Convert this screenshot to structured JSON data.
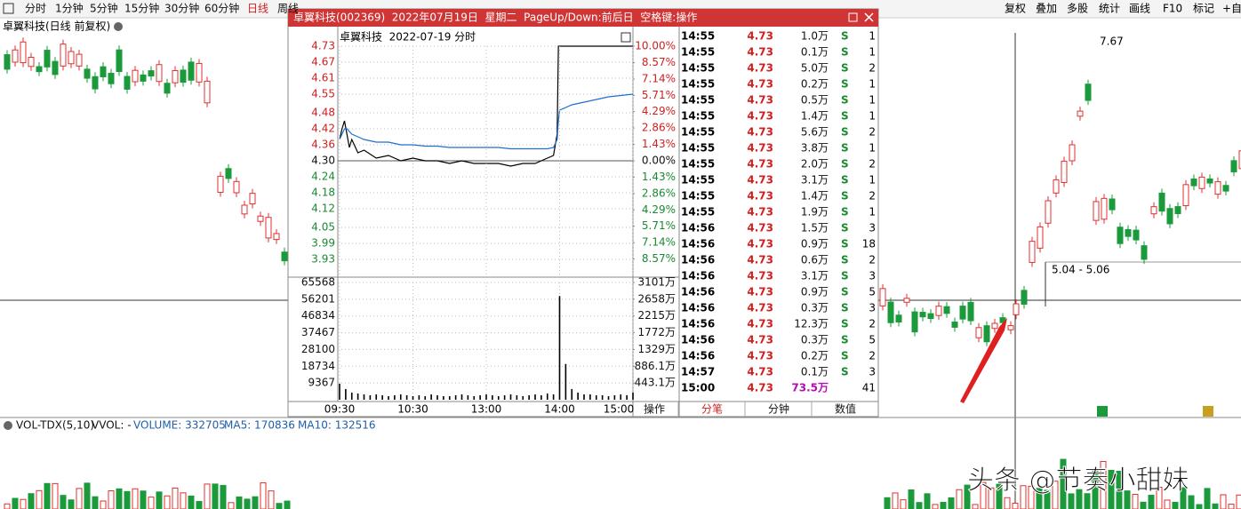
{
  "ui": {
    "toolbar_left": [
      "分时",
      "1分钟",
      "5分钟",
      "15分钟",
      "30分钟",
      "60分钟",
      "日线",
      "周线"
    ],
    "toolbar_right": [
      "复权",
      "叠加",
      "多股",
      "统计",
      "画线",
      "F10",
      "标记",
      "+自"
    ],
    "main_title": "卓翼科技(日线 前复权)",
    "annotations": [
      "7.67",
      "5.04 - 5.06"
    ],
    "volume_header": [
      "VOL-TDX(5,10)",
      "VVOL: -",
      "VOLUME: 332705",
      "MA5: 170836",
      "MA10: 132516"
    ],
    "watermark": "头条 @节奏小甜妹"
  },
  "popup": {
    "title": "卓翼科技(002369)  2022年07月19日  星期二  PageUp/Down:前后日  空格键:操作",
    "tabs": [
      "操作",
      "分笔",
      "分钟",
      "数值"
    ],
    "trades": [
      {
        "time": "14:55",
        "price": "4.73",
        "volume": "1.0万",
        "side": "S",
        "count": "1"
      },
      {
        "time": "14:55",
        "price": "4.73",
        "volume": "0.1万",
        "side": "S",
        "count": "1"
      },
      {
        "time": "14:55",
        "price": "4.73",
        "volume": "5.0万",
        "side": "S",
        "count": "2"
      },
      {
        "time": "14:55",
        "price": "4.73",
        "volume": "0.2万",
        "side": "S",
        "count": "1"
      },
      {
        "time": "14:55",
        "price": "4.73",
        "volume": "0.5万",
        "side": "S",
        "count": "1"
      },
      {
        "time": "14:55",
        "price": "4.73",
        "volume": "1.4万",
        "side": "S",
        "count": "1"
      },
      {
        "time": "14:55",
        "price": "4.73",
        "volume": "5.6万",
        "side": "S",
        "count": "2"
      },
      {
        "time": "14:55",
        "price": "4.73",
        "volume": "3.8万",
        "side": "S",
        "count": "1"
      },
      {
        "time": "14:55",
        "price": "4.73",
        "volume": "2.0万",
        "side": "S",
        "count": "2"
      },
      {
        "time": "14:55",
        "price": "4.73",
        "volume": "3.1万",
        "side": "S",
        "count": "1"
      },
      {
        "time": "14:55",
        "price": "4.73",
        "volume": "1.4万",
        "side": "S",
        "count": "2"
      },
      {
        "time": "14:55",
        "price": "4.73",
        "volume": "1.9万",
        "side": "S",
        "count": "1"
      },
      {
        "time": "14:56",
        "price": "4.73",
        "volume": "1.5万",
        "side": "S",
        "count": "3"
      },
      {
        "time": "14:56",
        "price": "4.73",
        "volume": "0.9万",
        "side": "S",
        "count": "18"
      },
      {
        "time": "14:56",
        "price": "4.73",
        "volume": "0.6万",
        "side": "S",
        "count": "2"
      },
      {
        "time": "14:56",
        "price": "4.73",
        "volume": "3.1万",
        "side": "S",
        "count": "3"
      },
      {
        "time": "14:56",
        "price": "4.73",
        "volume": "0.9万",
        "side": "S",
        "count": "5"
      },
      {
        "time": "14:56",
        "price": "4.73",
        "volume": "0.3万",
        "side": "S",
        "count": "3"
      },
      {
        "time": "14:56",
        "price": "4.73",
        "volume": "12.3万",
        "side": "S",
        "count": "2"
      },
      {
        "time": "14:56",
        "price": "4.73",
        "volume": "0.3万",
        "side": "S",
        "count": "5"
      },
      {
        "time": "14:56",
        "price": "4.73",
        "volume": "0.2万",
        "side": "S",
        "count": "2"
      },
      {
        "time": "14:57",
        "price": "4.73",
        "volume": "0.1万",
        "side": "S",
        "count": "3"
      },
      {
        "time": "15:00",
        "price": "4.73",
        "volume": "73.5万",
        "count": "41"
      }
    ]
  },
  "chart_data": [
    {
      "type": "line",
      "title": "卓翼科技  2022-07-19 分时",
      "x": [
        0,
        2,
        4,
        6,
        8,
        10,
        15,
        20,
        30,
        40,
        50,
        60,
        70,
        80,
        90,
        100,
        110,
        120,
        130,
        140,
        150,
        160,
        170,
        175,
        178,
        179,
        180,
        190,
        200,
        210,
        220,
        230,
        240
      ],
      "series": [
        {
          "color": "#000000",
          "values": [
            4.38,
            4.42,
            4.45,
            4.4,
            4.35,
            4.38,
            4.33,
            4.34,
            4.31,
            4.32,
            4.3,
            4.31,
            4.3,
            4.3,
            4.29,
            4.3,
            4.29,
            4.29,
            4.29,
            4.28,
            4.29,
            4.29,
            4.31,
            4.32,
            4.4,
            4.73,
            4.73,
            4.73,
            4.73,
            4.73,
            4.73,
            4.73,
            4.73
          ]
        },
        {
          "color": "#1f6fd0",
          "values": [
            4.38,
            4.4,
            4.42,
            4.42,
            4.41,
            4.4,
            4.39,
            4.38,
            4.37,
            4.37,
            4.36,
            4.36,
            4.355,
            4.355,
            4.35,
            4.35,
            4.35,
            4.35,
            4.35,
            4.345,
            4.345,
            4.345,
            4.345,
            4.35,
            4.38,
            4.45,
            4.49,
            4.51,
            4.52,
            4.53,
            4.54,
            4.545,
            4.55
          ]
        }
      ],
      "xlim": [
        0,
        240
      ],
      "ylim": [
        3.87,
        4.73
      ],
      "yticks": [
        4.73,
        4.67,
        4.61,
        4.55,
        4.48,
        4.42,
        4.36,
        {
          "value": 4.3,
          "label": "4.30"
        },
        4.24,
        4.18,
        4.12,
        4.05,
        3.99,
        3.93
      ],
      "y2lim": [
        -10,
        10
      ],
      "y2ticks": [
        {
          "value": 10,
          "label": "10.00%"
        },
        {
          "value": 8.57,
          "label": "8.57%"
        },
        {
          "value": 7.14,
          "label": "7.14%"
        },
        {
          "value": 5.71,
          "label": "5.71%"
        },
        {
          "value": 4.29,
          "label": "4.29%"
        },
        {
          "value": 2.86,
          "label": "2.86%"
        },
        {
          "value": 1.43,
          "label": "1.43%"
        },
        {
          "value": 0,
          "label": "0.00%"
        },
        {
          "value": -1.43,
          "label": "1.43%"
        },
        {
          "value": -2.86,
          "label": "2.86%"
        },
        {
          "value": -4.29,
          "label": "4.29%"
        },
        {
          "value": -5.71,
          "label": "5.71%"
        },
        {
          "value": -7.14,
          "label": "7.14%"
        },
        {
          "value": -8.57,
          "label": "8.57%"
        }
      ],
      "grid": true
    },
    {
      "type": "bar",
      "color": "#000000",
      "x": [
        0,
        5,
        10,
        15,
        20,
        25,
        30,
        35,
        40,
        45,
        50,
        55,
        60,
        65,
        70,
        75,
        80,
        85,
        90,
        95,
        100,
        105,
        110,
        115,
        120,
        125,
        130,
        135,
        140,
        145,
        150,
        155,
        160,
        165,
        170,
        175,
        180,
        185,
        190,
        195,
        200,
        205,
        210,
        215,
        220,
        225,
        230,
        235,
        240
      ],
      "values": [
        9000,
        6000,
        4000,
        3500,
        3000,
        2500,
        3000,
        2500,
        2000,
        2500,
        3000,
        2500,
        2000,
        2500,
        2000,
        3000,
        2500,
        2000,
        2000,
        2500,
        3000,
        2500,
        2000,
        2500,
        3000,
        2500,
        2000,
        2500,
        3000,
        2500,
        2000,
        2500,
        3000,
        2500,
        3500,
        3000,
        58000,
        20000,
        6000,
        4000,
        3000,
        3000,
        2500,
        2500,
        2000,
        2500,
        3000,
        2500,
        4000
      ],
      "xlim": [
        0,
        240
      ],
      "ylim": [
        0,
        65568
      ],
      "xticks": [
        {
          "value": 0,
          "label": "09:30"
        },
        {
          "value": 60,
          "label": "10:30"
        },
        {
          "value": 120,
          "label": "13:00"
        },
        {
          "value": 180,
          "label": "14:00"
        },
        {
          "value": 240,
          "label": "15:00"
        }
      ],
      "yticks": [
        9367,
        18734,
        28100,
        37467,
        46834,
        56201,
        65568
      ],
      "y2lim": [
        0,
        3101
      ],
      "y2ticks": [
        {
          "value": 443.1,
          "label": "443.1万"
        },
        {
          "value": 886.1,
          "label": "886.1万"
        },
        {
          "value": 1329,
          "label": "1329万"
        },
        {
          "value": 1772,
          "label": "1772万"
        },
        {
          "value": 2215,
          "label": "2215万"
        },
        {
          "value": 2658,
          "label": "2658万"
        },
        {
          "value": 3101,
          "label": "3101万"
        }
      ],
      "grid": true
    }
  ]
}
